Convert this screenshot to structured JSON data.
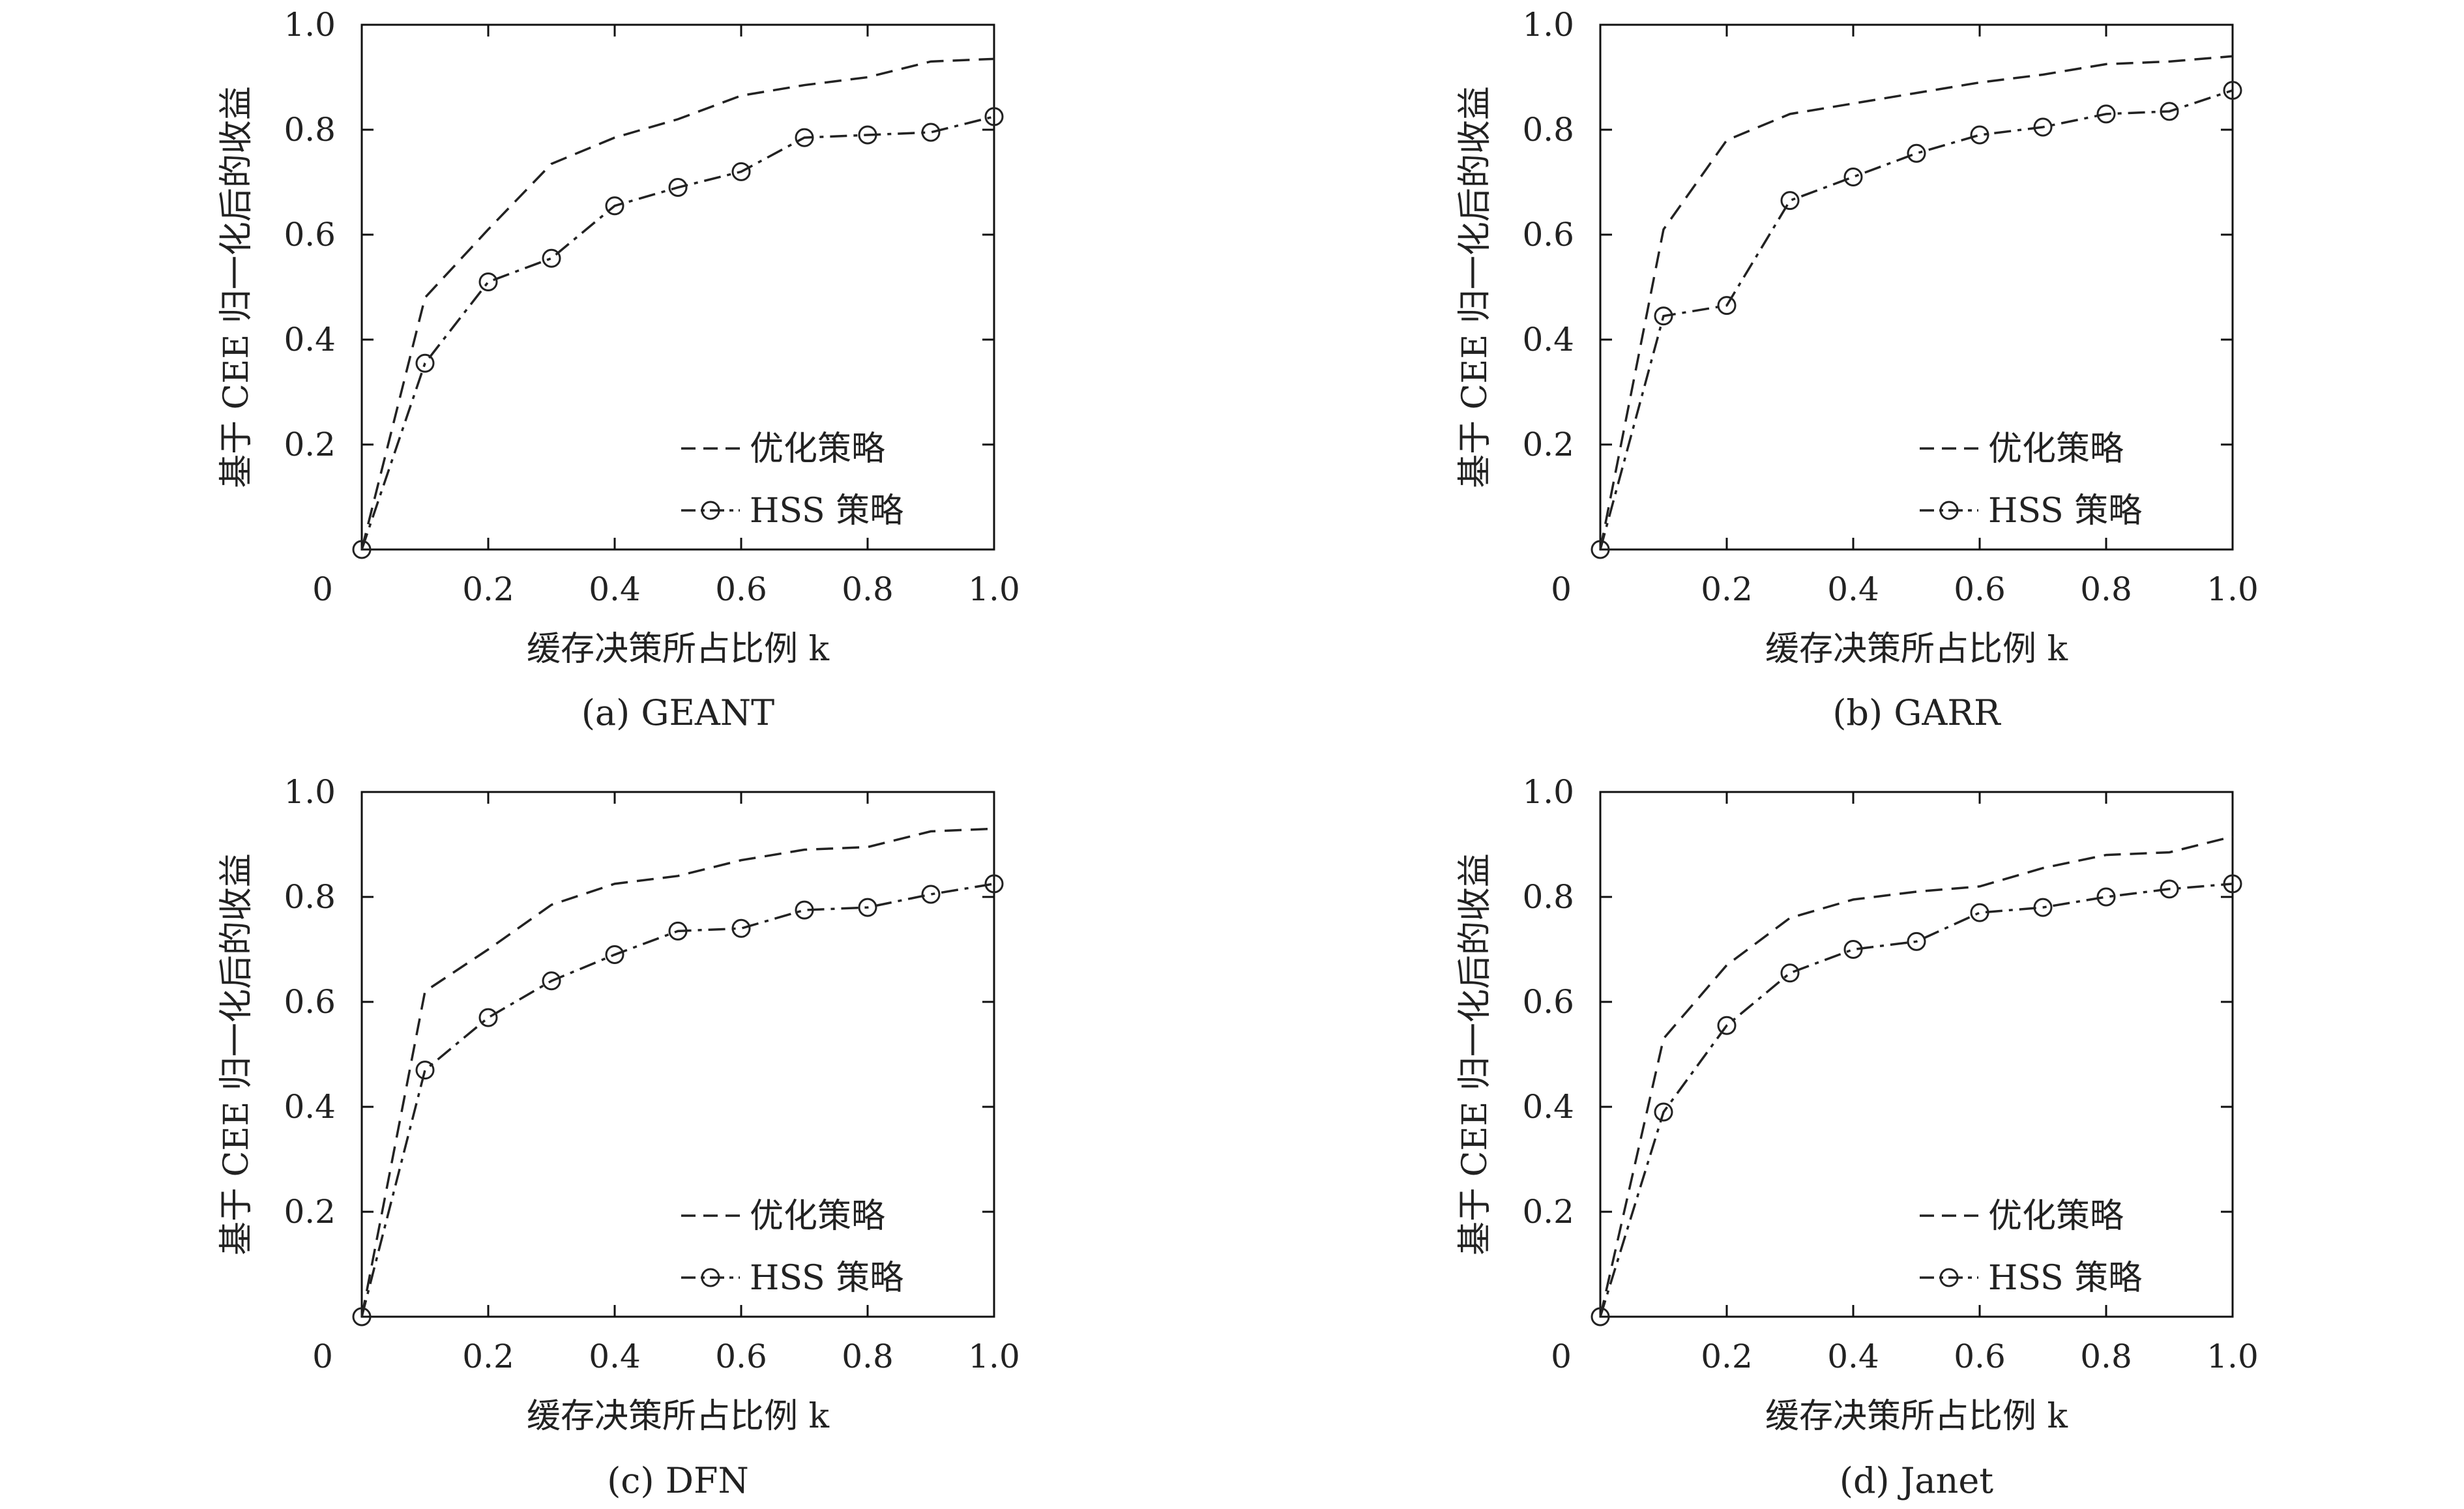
{
  "chart_data": [
    {
      "type": "line",
      "caption": "(a) GEANT",
      "xlabel": "缓存决策所占比例 k",
      "ylabel": "基于 CEE 归一化后的收益",
      "xlim": [
        0,
        1.0
      ],
      "ylim": [
        0,
        1.0
      ],
      "x_ticks": [
        "0",
        "0.2",
        "0.4",
        "0.6",
        "0.8",
        "1.0"
      ],
      "y_ticks": [
        "0.2",
        "0.4",
        "0.6",
        "0.8",
        "1.0"
      ],
      "legend_position": "bottom-right",
      "x": [
        0,
        0.1,
        0.2,
        0.3,
        0.4,
        0.5,
        0.6,
        0.7,
        0.8,
        0.9,
        1.0
      ],
      "series": [
        {
          "name": "优化策略",
          "style": "dashed",
          "marker": "none",
          "values": [
            0,
            0.48,
            0.61,
            0.735,
            0.785,
            0.82,
            0.865,
            0.885,
            0.9,
            0.93,
            0.935
          ]
        },
        {
          "name": "HSS 策略",
          "style": "dashdot",
          "marker": "circle",
          "values": [
            0,
            0.355,
            0.51,
            0.555,
            0.655,
            0.69,
            0.72,
            0.785,
            0.79,
            0.795,
            0.825
          ]
        }
      ]
    },
    {
      "type": "line",
      "caption": "(b) GARR",
      "xlabel": "缓存决策所占比例 k",
      "ylabel": "基于 CEE 归一化后的收益",
      "xlim": [
        0,
        1.0
      ],
      "ylim": [
        0,
        1.0
      ],
      "x_ticks": [
        "0",
        "0.2",
        "0.4",
        "0.6",
        "0.8",
        "1.0"
      ],
      "y_ticks": [
        "0.2",
        "0.4",
        "0.6",
        "0.8",
        "1.0"
      ],
      "legend_position": "bottom-right",
      "x": [
        0,
        0.1,
        0.2,
        0.3,
        0.4,
        0.5,
        0.6,
        0.7,
        0.8,
        0.9,
        1.0
      ],
      "series": [
        {
          "name": "优化策略",
          "style": "dashed",
          "marker": "none",
          "values": [
            0,
            0.61,
            0.78,
            0.83,
            0.85,
            0.87,
            0.89,
            0.905,
            0.925,
            0.93,
            0.94
          ]
        },
        {
          "name": "HSS 策略",
          "style": "dashdot",
          "marker": "circle",
          "values": [
            0,
            0.445,
            0.465,
            0.665,
            0.71,
            0.755,
            0.79,
            0.805,
            0.83,
            0.835,
            0.875
          ]
        }
      ]
    },
    {
      "type": "line",
      "caption": "(c) DFN",
      "xlabel": "缓存决策所占比例 k",
      "ylabel": "基于 CEE 归一化后的收益",
      "xlim": [
        0,
        1.0
      ],
      "ylim": [
        0,
        1.0
      ],
      "x_ticks": [
        "0",
        "0.2",
        "0.4",
        "0.6",
        "0.8",
        "1.0"
      ],
      "y_ticks": [
        "0.2",
        "0.4",
        "0.6",
        "0.8",
        "1.0"
      ],
      "legend_position": "bottom-right",
      "x": [
        0,
        0.1,
        0.2,
        0.3,
        0.4,
        0.5,
        0.6,
        0.7,
        0.8,
        0.9,
        1.0
      ],
      "series": [
        {
          "name": "优化策略",
          "style": "dashed",
          "marker": "none",
          "values": [
            0,
            0.62,
            0.7,
            0.785,
            0.825,
            0.84,
            0.87,
            0.89,
            0.895,
            0.925,
            0.93
          ]
        },
        {
          "name": "HSS 策略",
          "style": "dashdot",
          "marker": "circle",
          "values": [
            0,
            0.47,
            0.57,
            0.64,
            0.69,
            0.735,
            0.74,
            0.775,
            0.78,
            0.805,
            0.825
          ]
        }
      ]
    },
    {
      "type": "line",
      "caption": "(d) Janet",
      "xlabel": "缓存决策所占比例 k",
      "ylabel": "基于 CEE 归一化后的收益",
      "xlim": [
        0,
        1.0
      ],
      "ylim": [
        0,
        1.0
      ],
      "x_ticks": [
        "0",
        "0.2",
        "0.4",
        "0.6",
        "0.8",
        "1.0"
      ],
      "y_ticks": [
        "0.2",
        "0.4",
        "0.6",
        "0.8",
        "1.0"
      ],
      "legend_position": "bottom-right",
      "x": [
        0,
        0.1,
        0.2,
        0.3,
        0.4,
        0.5,
        0.6,
        0.7,
        0.8,
        0.9,
        1.0
      ],
      "series": [
        {
          "name": "优化策略",
          "style": "dashed",
          "marker": "none",
          "values": [
            0,
            0.53,
            0.67,
            0.76,
            0.795,
            0.81,
            0.82,
            0.855,
            0.88,
            0.885,
            0.915
          ]
        },
        {
          "name": "HSS 策略",
          "style": "dashdot",
          "marker": "circle",
          "values": [
            0,
            0.39,
            0.555,
            0.655,
            0.7,
            0.715,
            0.77,
            0.78,
            0.8,
            0.815,
            0.825
          ]
        }
      ]
    }
  ]
}
